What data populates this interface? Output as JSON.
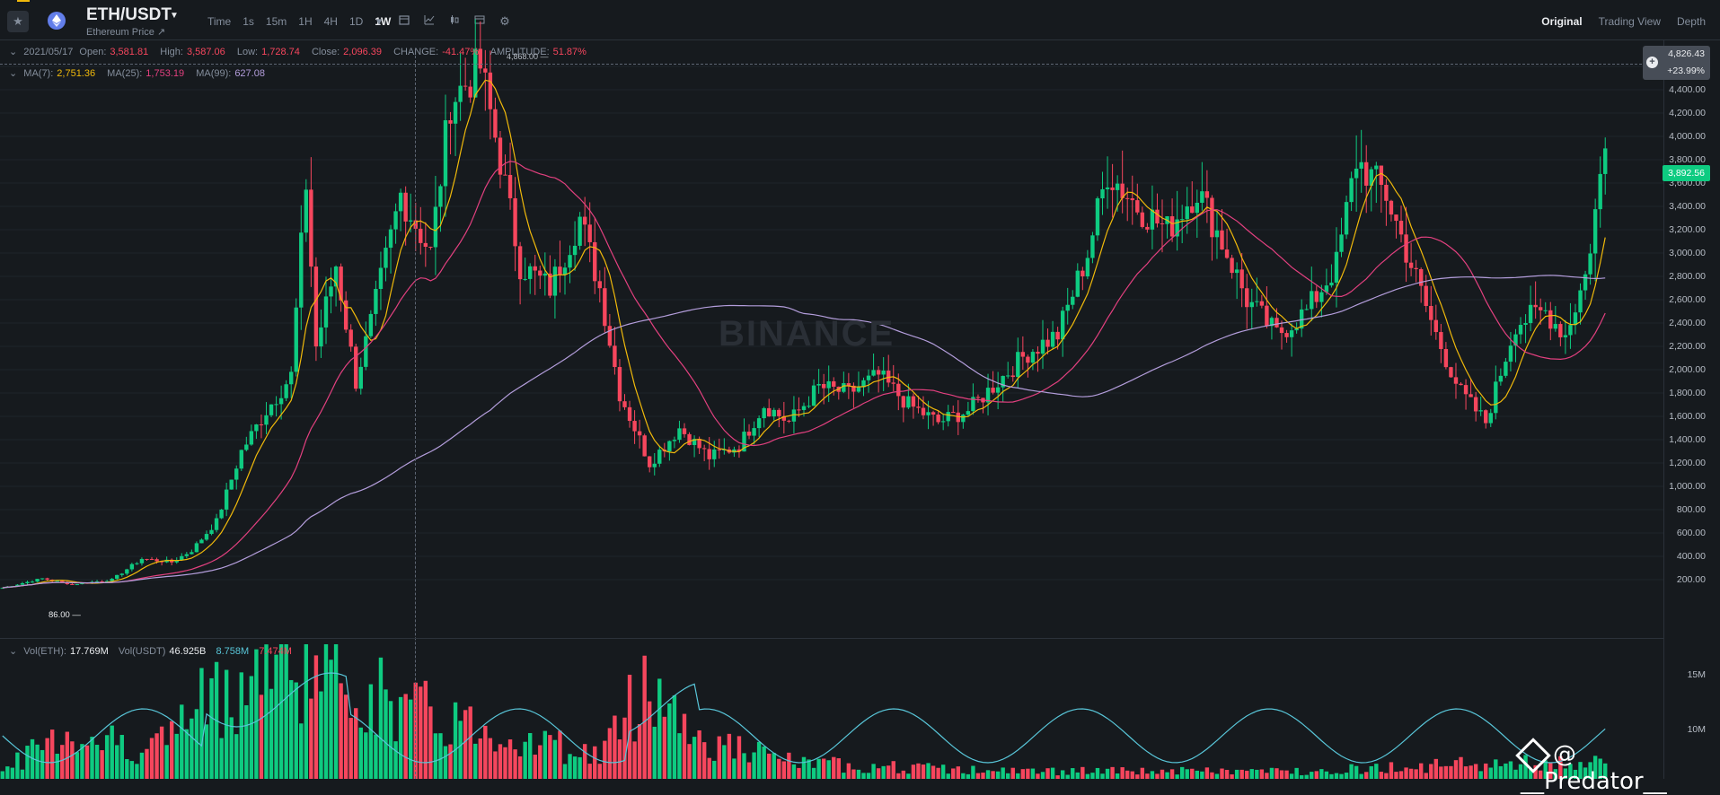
{
  "header": {
    "symbol": "ETH/USDT",
    "subtitle": "Ethereum Price ↗",
    "intervals": [
      "Time",
      "1s",
      "15m",
      "1H",
      "4H",
      "1D",
      "1W"
    ],
    "active_interval": "1W",
    "views": [
      "Original",
      "Trading View",
      "Depth"
    ],
    "active_view": "Original",
    "icons": [
      "star-icon",
      "ethereum-icon",
      "chevron-down-icon",
      "calendar-icon",
      "indicator-icon",
      "candle-type-icon",
      "layout-icon",
      "gear-icon"
    ]
  },
  "ohlc": {
    "date": "2021/05/17",
    "open_label": "Open:",
    "open": "3,581.81",
    "high_label": "High:",
    "high": "3,587.06",
    "low_label": "Low:",
    "low": "1,728.74",
    "close_label": "Close:",
    "close": "2,096.39",
    "change_label": "CHANGE:",
    "change": "-41.47%",
    "amplitude_label": "AMPLITUDE:",
    "amplitude": "51.87%"
  },
  "ma": {
    "ma7_label": "MA(7):",
    "ma7": "2,751.36",
    "ma25_label": "MA(25):",
    "ma25": "1,753.19",
    "ma99_label": "MA(99):",
    "ma99": "627.08"
  },
  "volume": {
    "eth_label": "Vol(ETH):",
    "eth": "17.769M",
    "usdt_label": "Vol(USDT)",
    "usdt": "46.925B",
    "ma5": "8.758M",
    "ma10": "7.474M",
    "axis_ticks": [
      "15M",
      "10M"
    ]
  },
  "price_axis": {
    "ticks": [
      "4,600.00",
      "4,400.00",
      "4,200.00",
      "4,000.00",
      "3,800.00",
      "3,600.00",
      "3,400.00",
      "3,200.00",
      "3,000.00",
      "2,800.00",
      "2,600.00",
      "2,400.00",
      "2,200.00",
      "2,000.00",
      "1,800.00",
      "1,600.00",
      "1,400.00",
      "1,200.00",
      "1,000.00",
      "800.00",
      "600.00",
      "400.00",
      "200.00"
    ],
    "hover_price": "4,826.43",
    "hover_change": "+23.99%",
    "current_price": "3,892.56",
    "all_time_high_label": "4,868.00",
    "low_label": "86.00"
  },
  "colors": {
    "up": "#0ecb81",
    "down": "#f6465d",
    "ma7": "#f0b90b",
    "ma25": "#e2407f",
    "ma99": "#b39ddb",
    "vol_ma": "#58c5d8",
    "background": "#161a1e"
  },
  "watermark": "BINANCE",
  "credit": "@ __Predator__",
  "chart_data": {
    "type": "candlestick",
    "interval": "1W",
    "ylim": [
      0,
      4900
    ],
    "close_anchors": [
      [
        0,
        130
      ],
      [
        8,
        210
      ],
      [
        14,
        160
      ],
      [
        22,
        200
      ],
      [
        28,
        380
      ],
      [
        34,
        350
      ],
      [
        38,
        450
      ],
      [
        43,
        700
      ],
      [
        48,
        1300
      ],
      [
        53,
        1650
      ],
      [
        58,
        1950
      ],
      [
        61,
        3600
      ],
      [
        63,
        2200
      ],
      [
        67,
        2900
      ],
      [
        71,
        1900
      ],
      [
        74,
        2400
      ],
      [
        80,
        3500
      ],
      [
        86,
        3000
      ],
      [
        90,
        4300
      ],
      [
        96,
        4600
      ],
      [
        100,
        3800
      ],
      [
        104,
        2900
      ],
      [
        110,
        2700
      ],
      [
        116,
        3300
      ],
      [
        120,
        2700
      ],
      [
        124,
        1800
      ],
      [
        130,
        1200
      ],
      [
        136,
        1500
      ],
      [
        142,
        1250
      ],
      [
        148,
        1350
      ],
      [
        153,
        1700
      ],
      [
        158,
        1550
      ],
      [
        164,
        1850
      ],
      [
        170,
        1800
      ],
      [
        176,
        1950
      ],
      [
        182,
        1700
      ],
      [
        188,
        1550
      ],
      [
        194,
        1650
      ],
      [
        200,
        1900
      ],
      [
        206,
        2150
      ],
      [
        212,
        2300
      ],
      [
        218,
        3000
      ],
      [
        222,
        3700
      ],
      [
        228,
        3400
      ],
      [
        234,
        3200
      ],
      [
        240,
        3550
      ],
      [
        246,
        3000
      ],
      [
        250,
        2600
      ],
      [
        256,
        2300
      ],
      [
        262,
        2500
      ],
      [
        268,
        2900
      ],
      [
        272,
        3800
      ],
      [
        278,
        3500
      ],
      [
        283,
        2900
      ],
      [
        288,
        2300
      ],
      [
        293,
        1800
      ],
      [
        298,
        1550
      ],
      [
        304,
        2400
      ],
      [
        310,
        2500
      ],
      [
        314,
        2300
      ],
      [
        318,
        2800
      ],
      [
        322,
        3900
      ]
    ],
    "volume_anchor_millions": [
      [
        0,
        1
      ],
      [
        12,
        6
      ],
      [
        30,
        4
      ],
      [
        45,
        12
      ],
      [
        60,
        16
      ],
      [
        80,
        9
      ],
      [
        100,
        6
      ],
      [
        120,
        3
      ],
      [
        130,
        13
      ],
      [
        140,
        5
      ],
      [
        160,
        2
      ],
      [
        200,
        1
      ],
      [
        260,
        1
      ],
      [
        300,
        2
      ],
      [
        322,
        2
      ]
    ]
  }
}
